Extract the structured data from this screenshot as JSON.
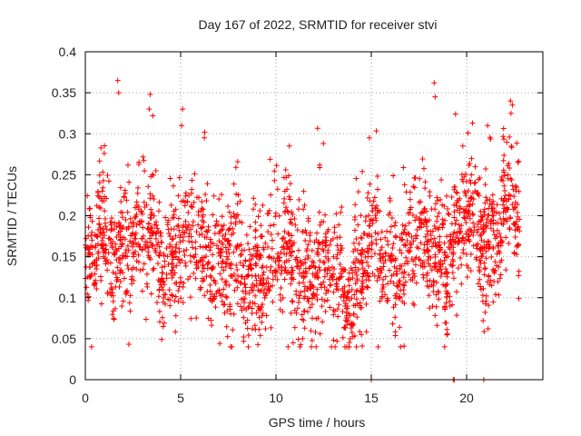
{
  "chart_data": {
    "type": "scatter",
    "title": "Day 167 of 2022, SRMTID for receiver stvi",
    "xlabel": "GPS time / hours",
    "ylabel": "SRMTID / TECUs",
    "xlim": [
      0,
      24
    ],
    "ylim": [
      0,
      0.4
    ],
    "x_ticks": [
      "0",
      "5",
      "10",
      "15",
      "20"
    ],
    "x_tick_values": [
      0,
      5,
      10,
      15,
      20
    ],
    "y_ticks": [
      "0",
      "0.05",
      "0.1",
      "0.15",
      "0.2",
      "0.25",
      "0.3",
      "0.35",
      "0.4"
    ],
    "y_tick_values": [
      0,
      0.05,
      0.1,
      0.15,
      0.2,
      0.25,
      0.3,
      0.35,
      0.4
    ],
    "grid": true,
    "marker": "plus",
    "color": "#ff0000",
    "point_count": 2300,
    "baseline_curve": {
      "x": [
        0,
        1,
        2,
        3,
        4,
        5,
        6,
        7,
        8,
        9,
        10,
        11,
        12,
        13,
        14,
        15,
        16,
        17,
        18,
        19,
        20,
        21,
        22,
        22.8
      ],
      "y": [
        0.14,
        0.16,
        0.165,
        0.16,
        0.16,
        0.15,
        0.16,
        0.15,
        0.12,
        0.14,
        0.145,
        0.14,
        0.14,
        0.12,
        0.12,
        0.14,
        0.15,
        0.16,
        0.17,
        0.16,
        0.17,
        0.18,
        0.19,
        0.2
      ]
    },
    "notable_points": [
      {
        "x": 1.7,
        "y": 0.365
      },
      {
        "x": 1.75,
        "y": 0.35
      },
      {
        "x": 3.4,
        "y": 0.348
      },
      {
        "x": 3.35,
        "y": 0.33
      },
      {
        "x": 5.1,
        "y": 0.33
      },
      {
        "x": 5.05,
        "y": 0.31
      },
      {
        "x": 10.7,
        "y": 0.285
      },
      {
        "x": 14.9,
        "y": 0.295
      },
      {
        "x": 18.3,
        "y": 0.362
      },
      {
        "x": 18.35,
        "y": 0.345
      },
      {
        "x": 19.8,
        "y": 0.285
      },
      {
        "x": 21.1,
        "y": 0.31
      },
      {
        "x": 22.3,
        "y": 0.34
      },
      {
        "x": 22.4,
        "y": 0.335
      },
      {
        "x": 10.9,
        "y": 0.045
      },
      {
        "x": 13.2,
        "y": 0.047
      },
      {
        "x": 11.4,
        "y": 0.05
      }
    ],
    "zero_points": [
      {
        "x": 15.0,
        "y": 0
      },
      {
        "x": 19.3,
        "y": 0
      },
      {
        "x": 19.35,
        "y": 0
      },
      {
        "x": 20.9,
        "y": 0
      }
    ]
  }
}
